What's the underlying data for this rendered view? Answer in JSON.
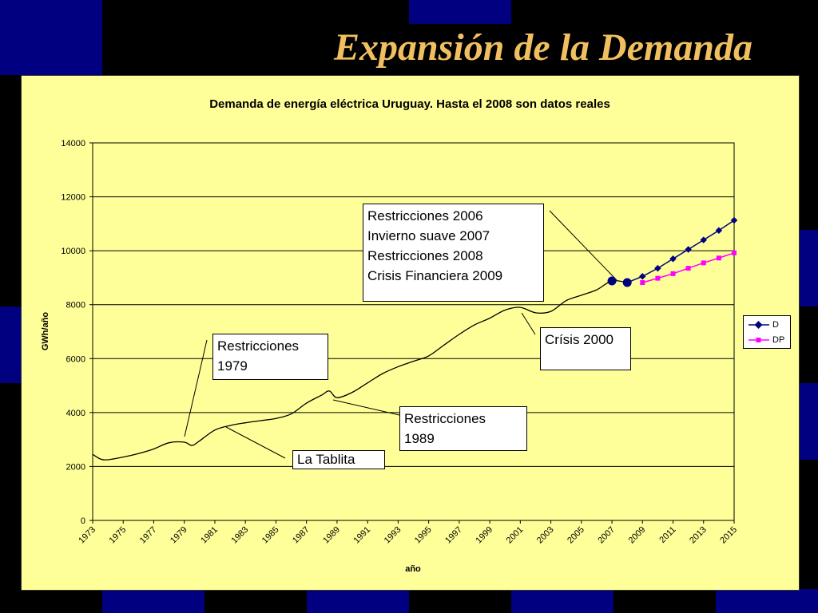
{
  "slide": {
    "title": "Expansión de la Demanda"
  },
  "colors": {
    "background": "#000000",
    "tile": "#000080",
    "panel": "#ffff99",
    "title": "#f0c060",
    "series_d": "#000080",
    "series_dp": "#ff00ff",
    "line": "#000000"
  },
  "chart_data": {
    "type": "line",
    "title": "Demanda de energía eléctrica Uruguay. Hasta el 2008 son datos reales",
    "xlabel": "año",
    "ylabel": "GWh/año",
    "xlim": [
      1973,
      2015
    ],
    "ylim": [
      0,
      14000
    ],
    "y_ticks": [
      0,
      2000,
      4000,
      6000,
      8000,
      10000,
      12000,
      14000
    ],
    "x_tick_labels": [
      "1973",
      "1975",
      "1977",
      "1979",
      "1981",
      "1983",
      "1985",
      "1987",
      "1989",
      "1991",
      "1993",
      "1995",
      "1997",
      "1999",
      "2001",
      "2003",
      "2005",
      "2007",
      "2009",
      "2011",
      "2013",
      "2015"
    ],
    "grid": true,
    "legend_position": "right",
    "historical": {
      "x": [
        1973,
        1973.5,
        1974,
        1975,
        1976,
        1977,
        1978,
        1979,
        1979.5,
        1980,
        1981,
        1982,
        1983,
        1984,
        1985,
        1986,
        1987,
        1988,
        1988.5,
        1989,
        1990,
        1991,
        1992,
        1993,
        1994,
        1995,
        1996,
        1997,
        1998,
        1999,
        2000,
        2001,
        2002,
        2003,
        2004,
        2005,
        2006,
        2007,
        2008
      ],
      "y": [
        2450,
        2280,
        2250,
        2350,
        2480,
        2650,
        2880,
        2900,
        2780,
        2950,
        3350,
        3520,
        3620,
        3700,
        3780,
        3950,
        4350,
        4650,
        4800,
        4550,
        4750,
        5100,
        5450,
        5700,
        5900,
        6100,
        6500,
        6900,
        7250,
        7500,
        7800,
        7900,
        7700,
        7750,
        8150,
        8350,
        8550,
        8880,
        8820
      ]
    },
    "highlight_points": [
      {
        "x": 2007,
        "y": 8880
      },
      {
        "x": 2008,
        "y": 8820
      }
    ],
    "series": [
      {
        "name": "D",
        "x": [
          2008,
          2009,
          2010,
          2011,
          2012,
          2013,
          2014,
          2015
        ],
        "y": [
          8820,
          9050,
          9350,
          9700,
          10050,
          10400,
          10750,
          11130
        ]
      },
      {
        "name": "DP",
        "x": [
          2009,
          2010,
          2011,
          2012,
          2013,
          2014,
          2015
        ],
        "y": [
          8820,
          8980,
          9150,
          9350,
          9550,
          9730,
          9920
        ]
      }
    ],
    "annotations": [
      {
        "id": "callout-2006",
        "lines": [
          "Restricciones 2006",
          "Invierno suave 2007",
          "Restricciones 2008",
          "Crisis Financiera 2009"
        ]
      },
      {
        "id": "callout-2000",
        "lines": [
          "Crísis 2000"
        ]
      },
      {
        "id": "callout-1979",
        "lines": [
          "Restricciones",
          "1979"
        ]
      },
      {
        "id": "callout-1989",
        "lines": [
          "Restricciones",
          "1989"
        ]
      },
      {
        "id": "callout-tablita",
        "lines": [
          "La Tablita"
        ]
      }
    ]
  }
}
